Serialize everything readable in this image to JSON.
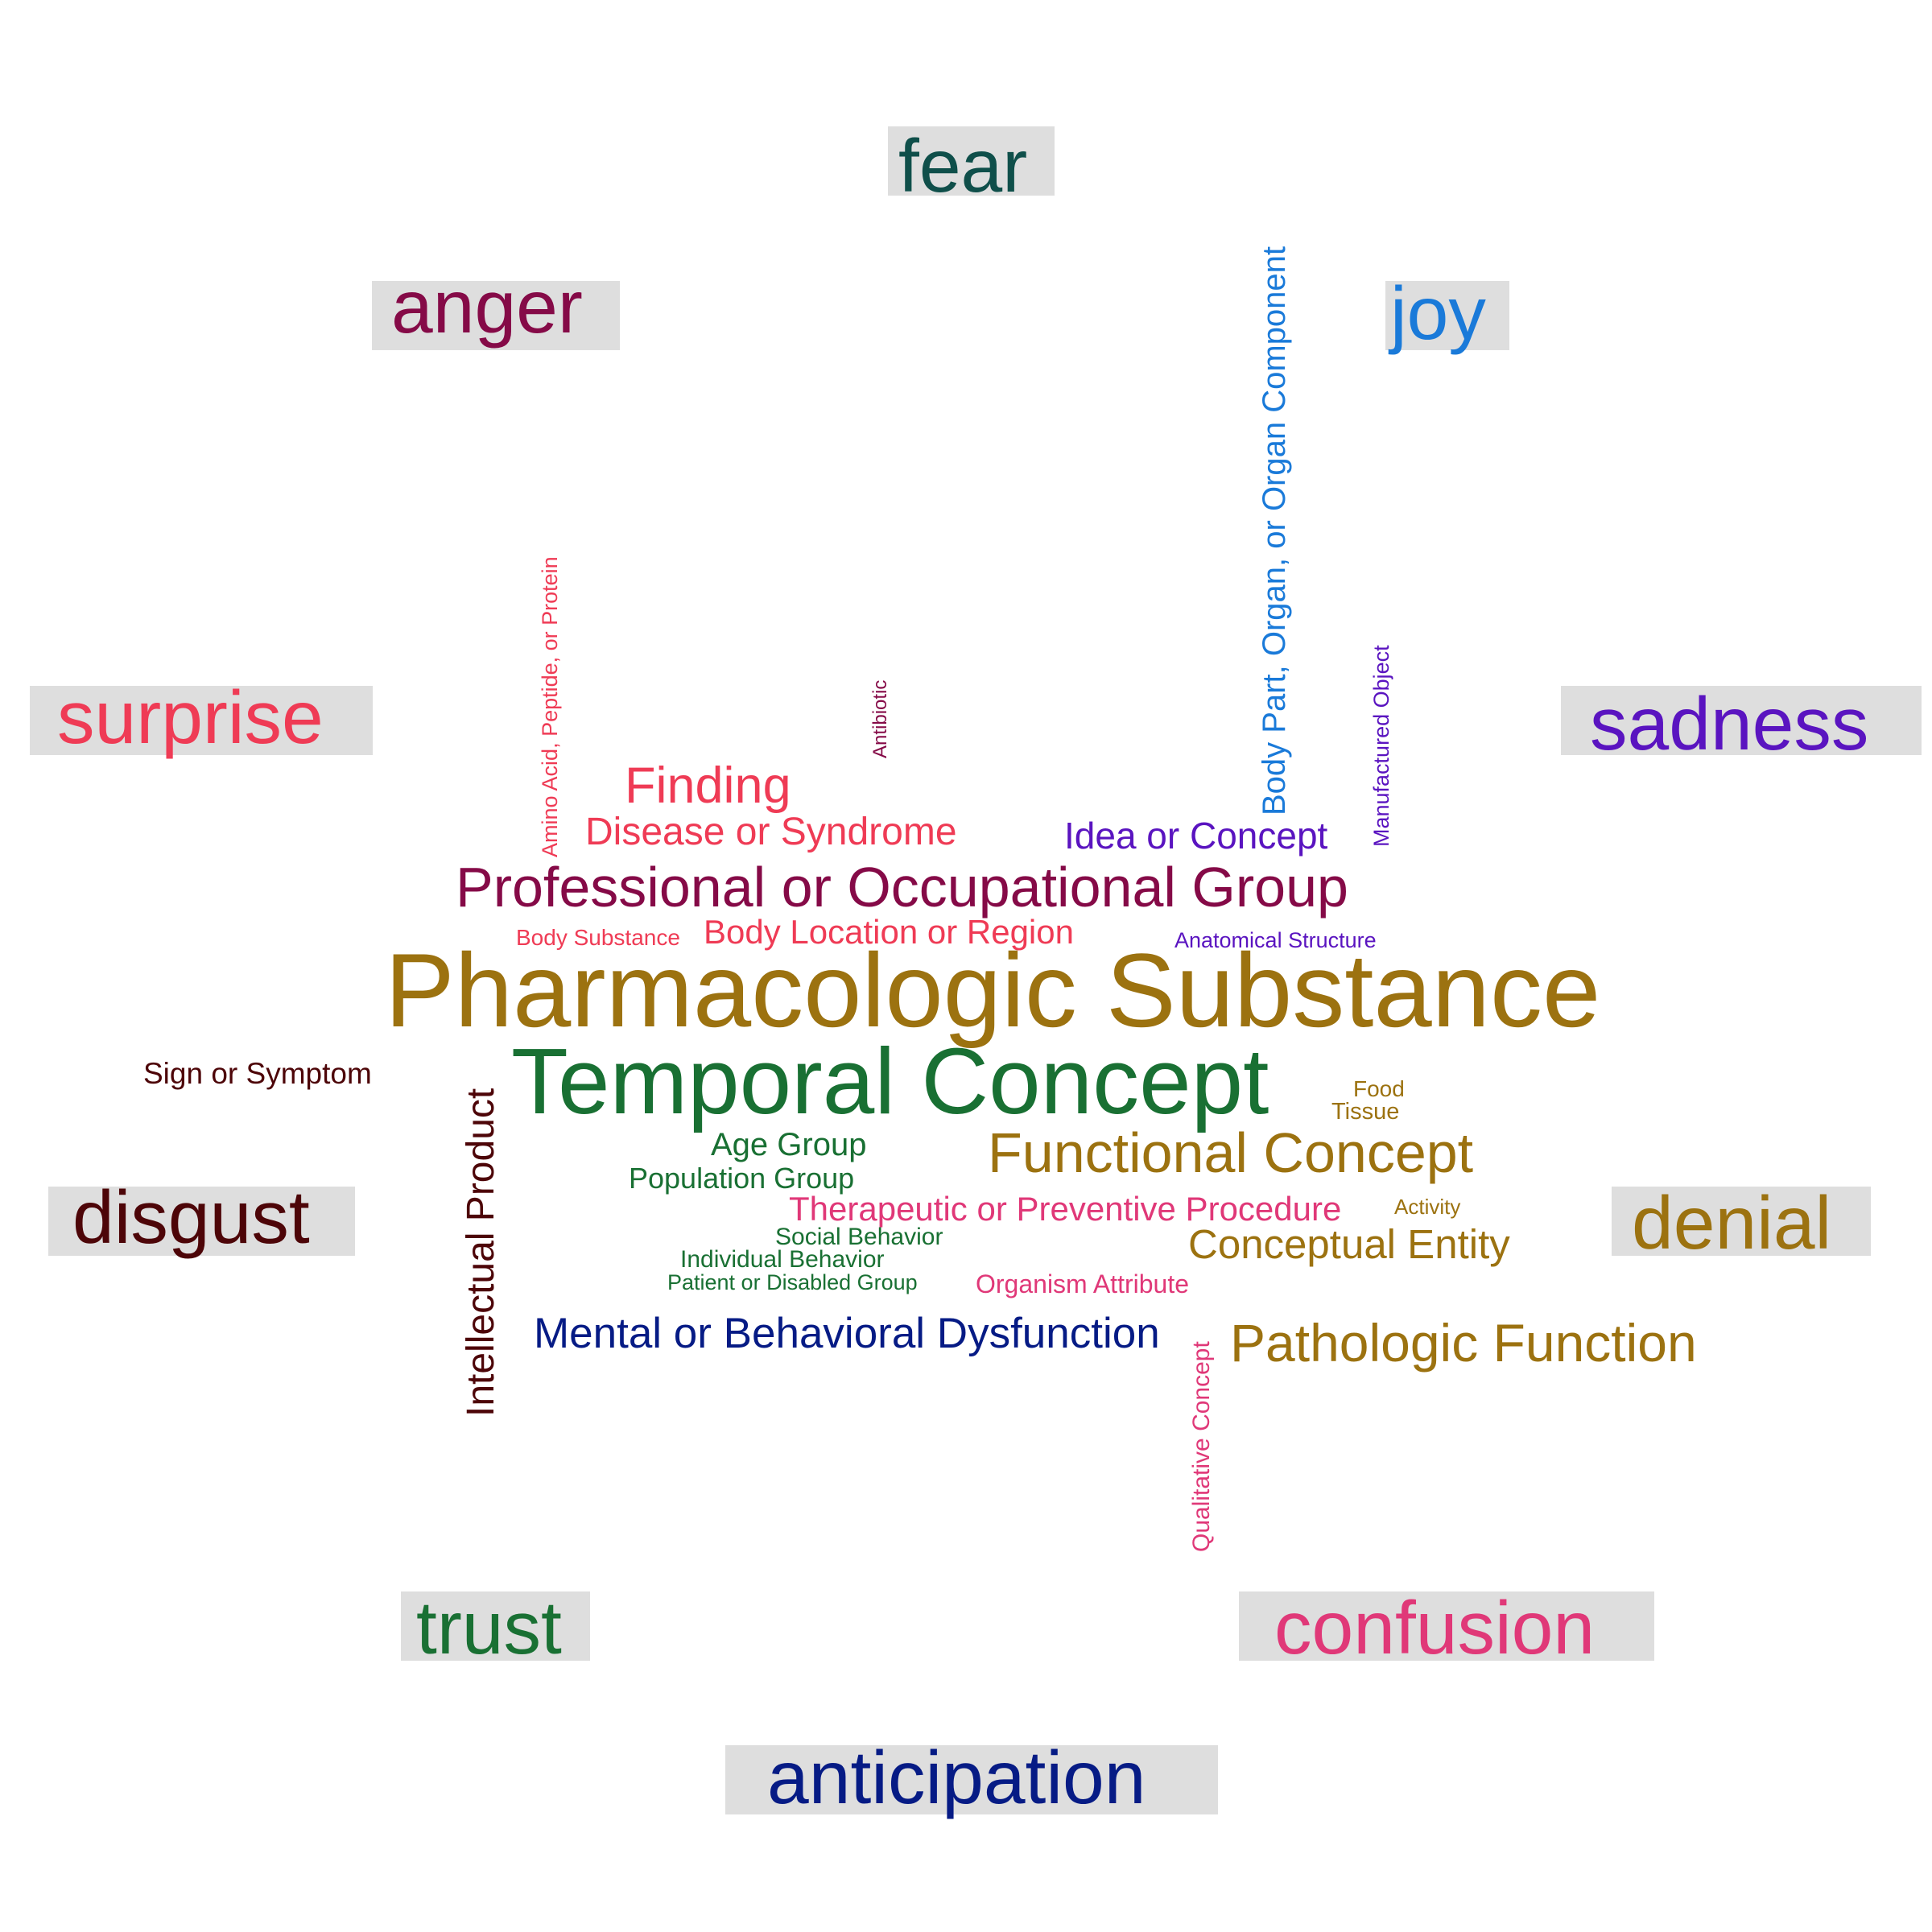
{
  "colors": {
    "teal": "#0f4f4a",
    "maroon": "#850a47",
    "blue": "#1a7ad9",
    "red": "#ef3b55",
    "purple": "#5a14c0",
    "darkbrown": "#4d0508",
    "gold": "#9c7210",
    "green": "#197033",
    "pink": "#e03878",
    "navy": "#061b85",
    "box": "#dedede"
  },
  "emotions": {
    "fear": "fear",
    "anger": "anger",
    "joy": "joy",
    "surprise": "surprise",
    "sadness": "sadness",
    "disgust": "disgust",
    "denial": "denial",
    "trust": "trust",
    "confusion": "confusion",
    "anticipation": "anticipation"
  },
  "terms": {
    "pharmacologic_substance": "Pharmacologic Substance",
    "temporal_concept": "Temporal Concept",
    "professional_group": "Professional or Occupational Group",
    "functional_concept": "Functional Concept",
    "pathologic_function": "Pathologic Function",
    "finding": "Finding",
    "disease_or_syndrome": "Disease or Syndrome",
    "idea_or_concept": "Idea or Concept",
    "body_location": "Body Location or Region",
    "body_substance": "Body Substance",
    "anatomical_structure": "Anatomical Structure",
    "sign_or_symptom": "Sign or Symptom",
    "food": "Food",
    "tissue": "Tissue",
    "age_group": "Age Group",
    "population_group": "Population Group",
    "therapeutic_procedure": "Therapeutic or Preventive Procedure",
    "activity": "Activity",
    "social_behavior": "Social Behavior",
    "individual_behavior": "Individual Behavior",
    "patient_group": "Patient or Disabled Group",
    "organism_attribute": "Organism Attribute",
    "conceptual_entity": "Conceptual Entity",
    "mental_dysfunction": "Mental or Behavioral Dysfunction",
    "intellectual_product": "Intellectual Product",
    "qualitative_concept": "Qualitative Concept",
    "amino_acid": "Amino Acid, Peptide, or Protein",
    "antibiotic": "Antibiotic",
    "body_part": "Body Part, Organ, or Organ Component",
    "manufactured_object": "Manufactured Object"
  }
}
